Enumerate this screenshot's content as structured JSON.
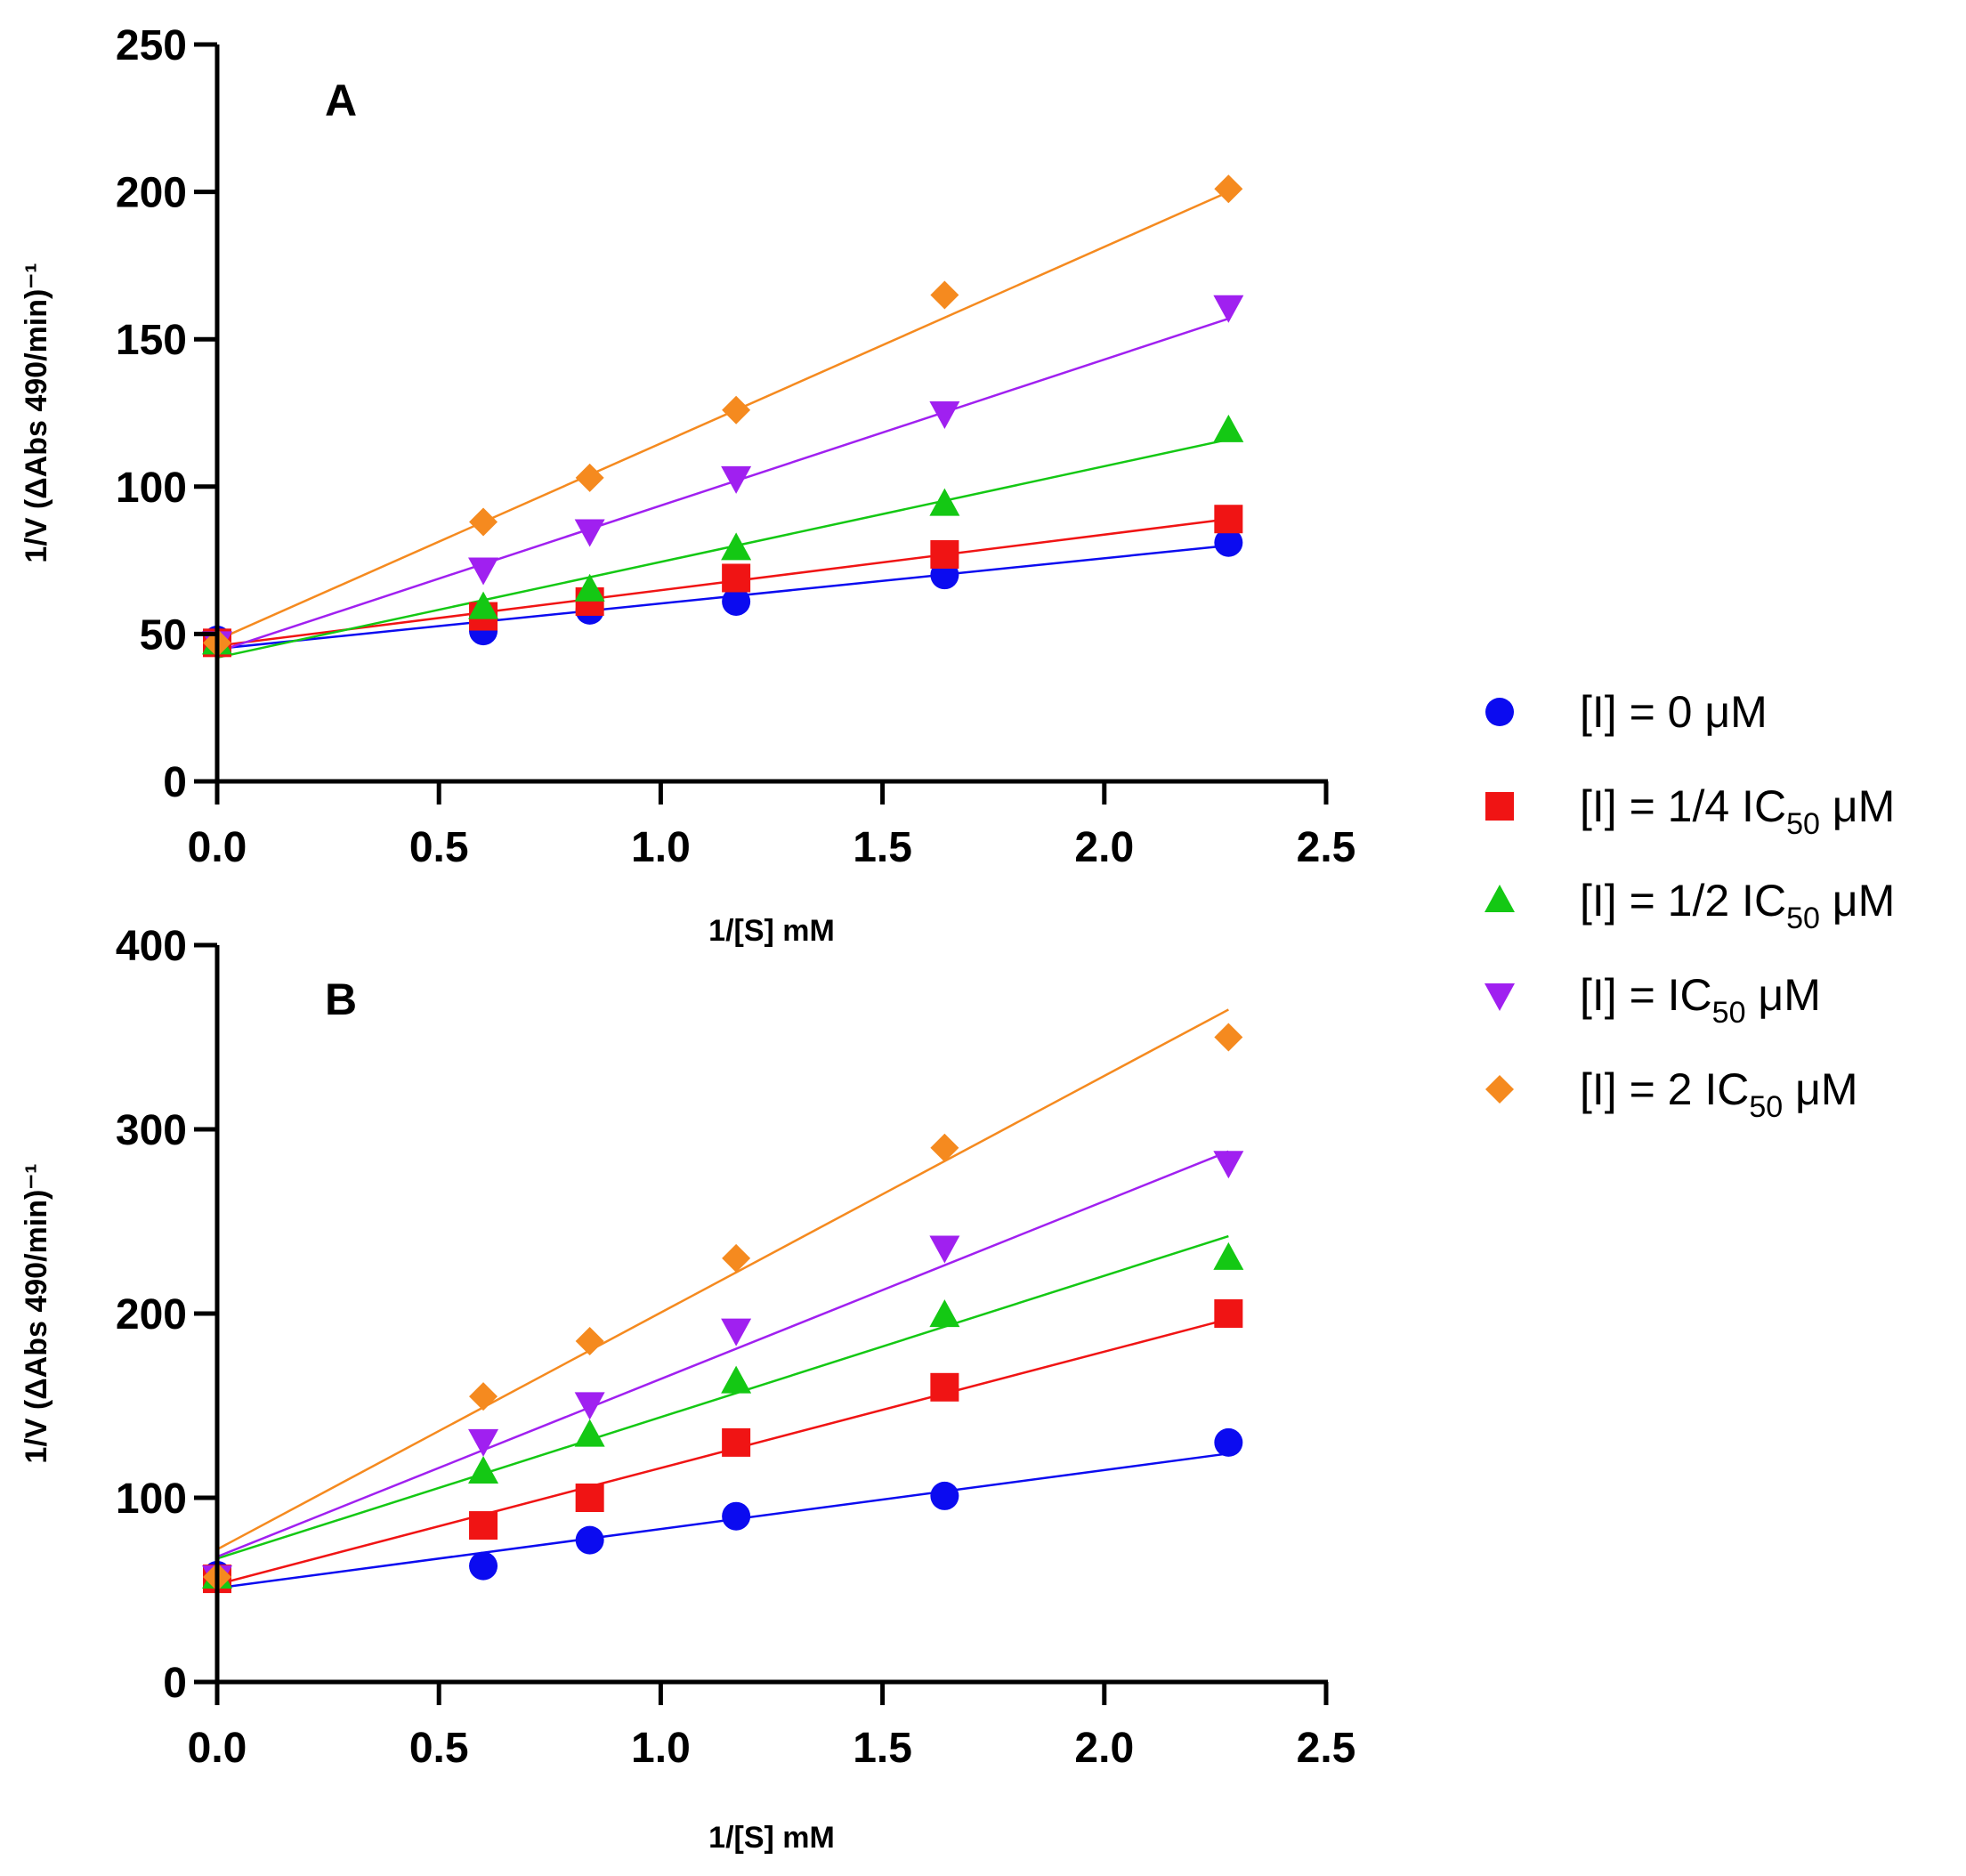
{
  "legend": [
    {
      "prefix": "[I] = 0 μM",
      "sub": "",
      "suffix": "",
      "color": "#0b0bf0",
      "marker": "circle"
    },
    {
      "prefix": "[I] = 1/4 IC",
      "sub": "50",
      "suffix": " μM",
      "color": "#f01414",
      "marker": "square"
    },
    {
      "prefix": "[I] = 1/2 IC",
      "sub": "50",
      "suffix": " μM",
      "color": "#14c814",
      "marker": "triangle-up"
    },
    {
      "prefix": "[I] =  IC",
      "sub": "50",
      "suffix": " μM",
      "color": "#a020f0",
      "marker": "triangle-down"
    },
    {
      "prefix": "[I] = 2 IC",
      "sub": "50",
      "suffix": " μM",
      "color": "#f58a1f",
      "marker": "diamond"
    }
  ],
  "chart_data": [
    {
      "type": "scatter",
      "panel_label": "A",
      "xlabel": "1/[S] mM",
      "ylabel": "1/V (ΔAbs 490/min)⁻¹",
      "xlim": [
        0,
        2.5
      ],
      "ylim": [
        0,
        250
      ],
      "xticks": [
        "0.0",
        "0.5",
        "1.0",
        "1.5",
        "2.0",
        "2.5"
      ],
      "yticks": [
        "0",
        "50",
        "100",
        "150",
        "200",
        "250"
      ],
      "x": [
        0,
        0.6,
        0.84,
        1.17,
        1.64,
        2.28
      ],
      "series": [
        {
          "values": [
            48,
            51,
            58,
            61,
            70,
            81
          ],
          "fit": [
            45,
            80
          ]
        },
        {
          "values": [
            47,
            56,
            61,
            69,
            77,
            89
          ],
          "fit": [
            46,
            89
          ]
        },
        {
          "values": [
            47,
            59,
            65,
            79,
            94,
            119
          ],
          "fit": [
            42,
            116
          ]
        },
        {
          "values": [
            47,
            72,
            85,
            103,
            125,
            161
          ],
          "fit": [
            44,
            157
          ]
        },
        {
          "values": [
            47,
            88,
            103,
            126,
            165,
            201
          ],
          "fit": [
            48,
            200
          ]
        }
      ]
    },
    {
      "type": "scatter",
      "panel_label": "B",
      "xlabel": "1/[S] mM",
      "ylabel": "1/V (ΔAbs 490/min)⁻¹",
      "xlim": [
        0,
        2.5
      ],
      "ylim": [
        0,
        400
      ],
      "xticks": [
        "0.0",
        "0.5",
        "1.0",
        "1.5",
        "2.0",
        "2.5"
      ],
      "yticks": [
        "0",
        "100",
        "200",
        "300",
        "400"
      ],
      "x": [
        0,
        0.6,
        0.84,
        1.17,
        1.64,
        2.28
      ],
      "series": [
        {
          "values": [
            58,
            63,
            77,
            90,
            101,
            130
          ],
          "fit": [
            51,
            124
          ]
        },
        {
          "values": [
            56,
            85,
            100,
            130,
            160,
            200
          ],
          "fit": [
            53,
            197
          ]
        },
        {
          "values": [
            57,
            114,
            134,
            163,
            199,
            230
          ],
          "fit": [
            67,
            242
          ]
        },
        {
          "values": [
            57,
            131,
            151,
            191,
            236,
            282
          ],
          "fit": [
            68,
            288
          ]
        },
        {
          "values": [
            57,
            155,
            185,
            230,
            290,
            350
          ],
          "fit": [
            72,
            365
          ]
        }
      ]
    }
  ]
}
